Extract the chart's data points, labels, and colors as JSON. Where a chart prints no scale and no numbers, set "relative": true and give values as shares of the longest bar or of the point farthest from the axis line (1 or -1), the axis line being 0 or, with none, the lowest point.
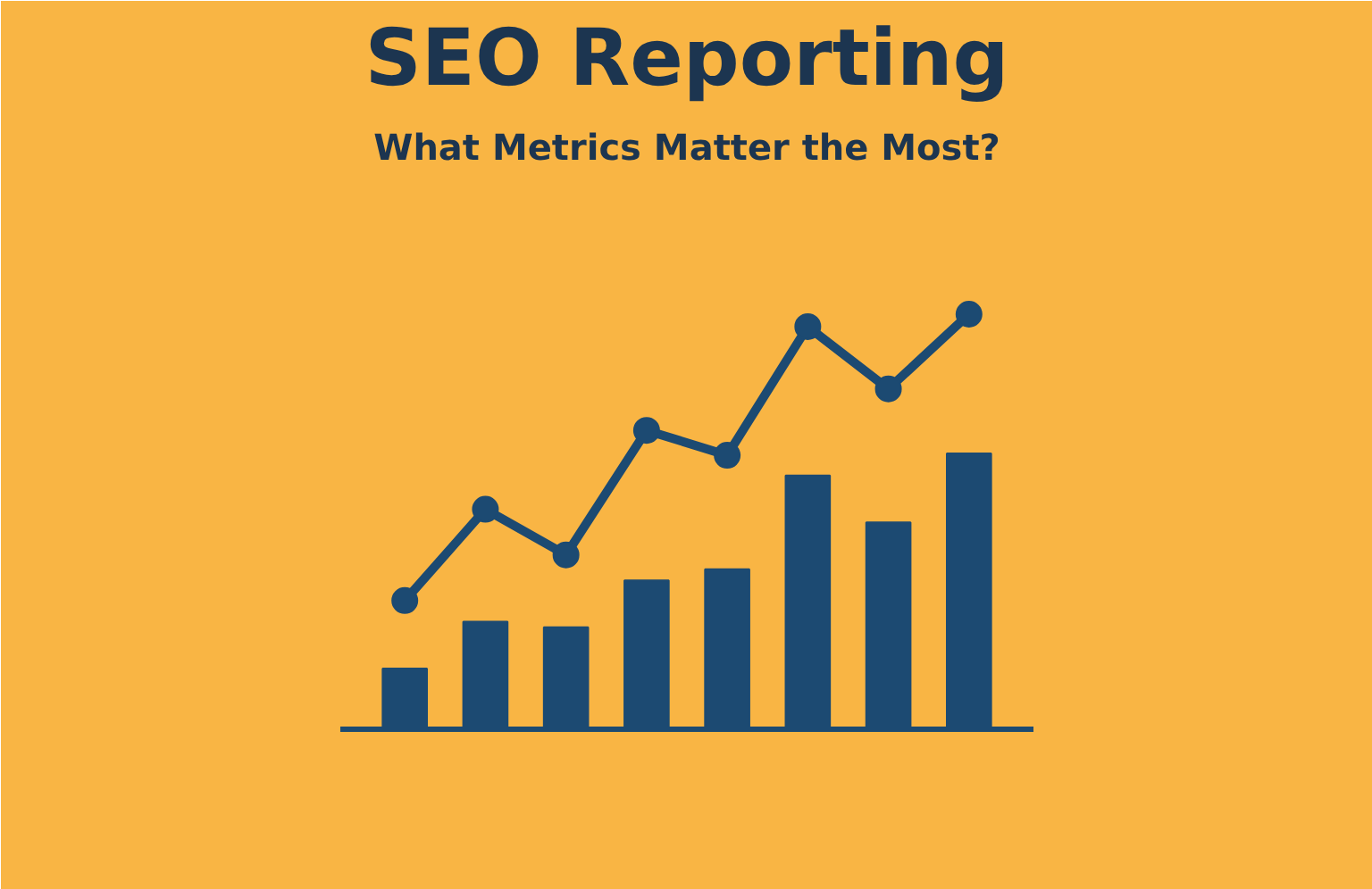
{
  "chart_data": [
    {
      "type": "bar",
      "title": "SEO Reporting",
      "subtitle": "What Metrics Matter the Most?",
      "relative": true,
      "color": "#1c4a72",
      "categories": [
        null,
        null,
        null,
        null,
        null,
        null,
        null,
        null
      ],
      "values": [
        0.22,
        0.39,
        0.37,
        0.54,
        0.58,
        0.92,
        0.75,
        1.0
      ]
    },
    {
      "type": "line",
      "relative": true,
      "color": "#1c4a72",
      "marker": "circle",
      "categories": [
        null,
        null,
        null,
        null,
        null,
        null,
        null,
        null
      ],
      "values": [
        0.31,
        0.53,
        0.42,
        0.72,
        0.66,
        0.97,
        0.82,
        1.0
      ]
    }
  ]
}
